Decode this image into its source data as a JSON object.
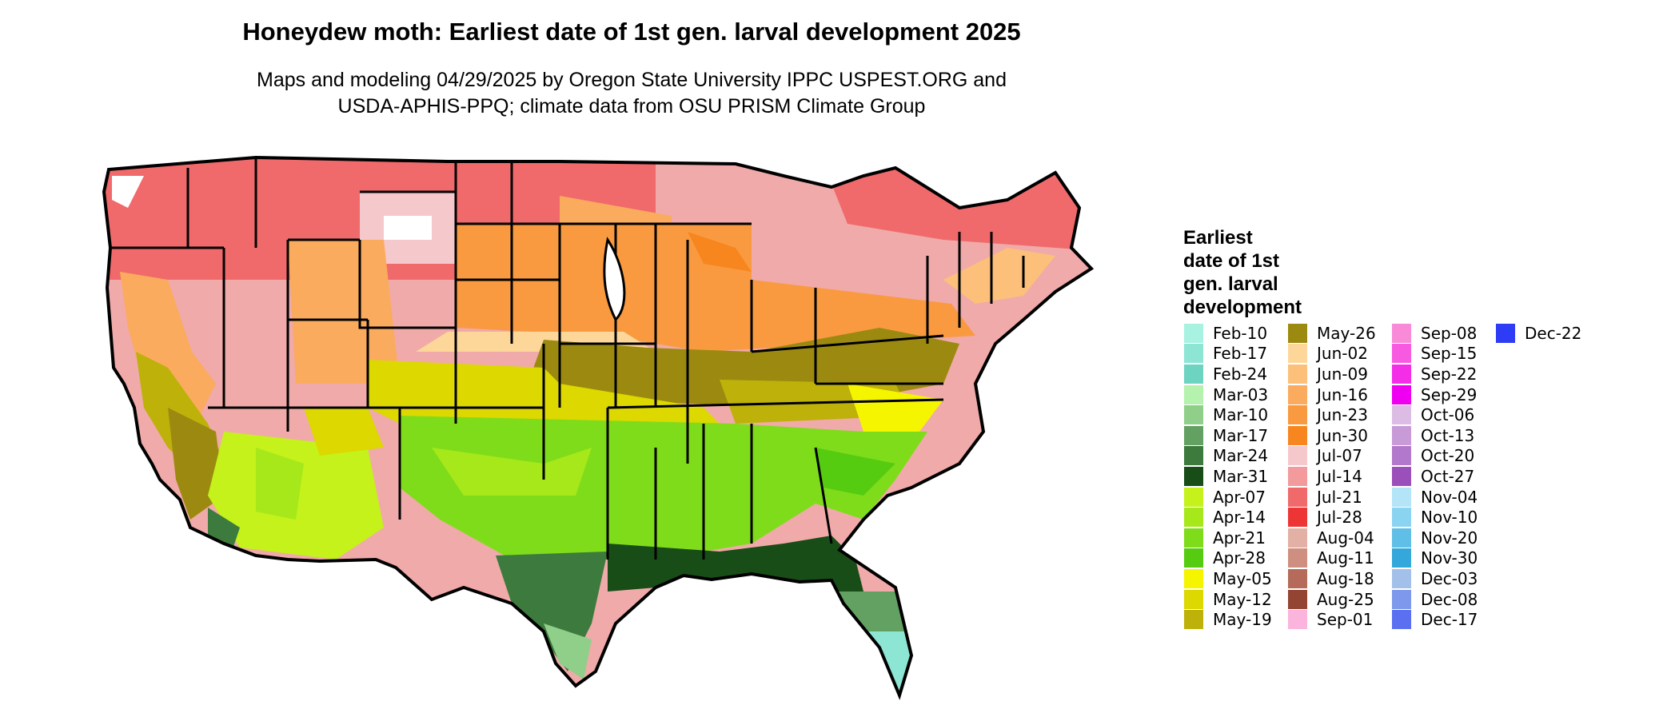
{
  "header": {
    "title": "Honeydew moth: Earliest date of 1st gen. larval development 2025",
    "subtitle_line1": "Maps and modeling 04/29/2025 by Oregon State University IPPC USPEST.ORG and",
    "subtitle_line2": "USDA-APHIS-PPQ; climate data from OSU PRISM Climate Group"
  },
  "legend": {
    "title_lines": [
      "Earliest",
      "date of 1st",
      "gen. larval",
      "development"
    ],
    "columns": [
      [
        {
          "label": "Feb-10",
          "color": "#a8f2e2"
        },
        {
          "label": "Feb-17",
          "color": "#8de5d3"
        },
        {
          "label": "Feb-24",
          "color": "#6dd4c2"
        },
        {
          "label": "Mar-03",
          "color": "#b5f2ad"
        },
        {
          "label": "Mar-10",
          "color": "#8fcf8a"
        },
        {
          "label": "Mar-17",
          "color": "#63a162"
        },
        {
          "label": "Mar-24",
          "color": "#3d7a3d"
        },
        {
          "label": "Mar-31",
          "color": "#184d18"
        },
        {
          "label": "Apr-07",
          "color": "#c4f21a"
        },
        {
          "label": "Apr-14",
          "color": "#a6e81a"
        },
        {
          "label": "Apr-21",
          "color": "#7fdc1a"
        },
        {
          "label": "Apr-28",
          "color": "#55cc10"
        },
        {
          "label": "May-05",
          "color": "#f5f500"
        },
        {
          "label": "May-12",
          "color": "#dcd800"
        },
        {
          "label": "May-19",
          "color": "#bdb10a"
        }
      ],
      [
        {
          "label": "May-26",
          "color": "#9c8a10"
        },
        {
          "label": "Jun-02",
          "color": "#fdd79a"
        },
        {
          "label": "Jun-09",
          "color": "#fcc07a"
        },
        {
          "label": "Jun-16",
          "color": "#fbab5e"
        },
        {
          "label": "Jun-23",
          "color": "#fa9a40"
        },
        {
          "label": "Jun-30",
          "color": "#f7861e"
        },
        {
          "label": "Jul-07",
          "color": "#f5c8cc"
        },
        {
          "label": "Jul-14",
          "color": "#f29a9c"
        },
        {
          "label": "Jul-21",
          "color": "#f06a6c"
        },
        {
          "label": "Jul-28",
          "color": "#ed3535"
        },
        {
          "label": "Aug-04",
          "color": "#e2b0a4"
        },
        {
          "label": "Aug-11",
          "color": "#cf8f80"
        },
        {
          "label": "Aug-18",
          "color": "#b56a5a"
        },
        {
          "label": "Aug-25",
          "color": "#944433"
        },
        {
          "label": "Sep-01",
          "color": "#fbb4dc"
        }
      ],
      [
        {
          "label": "Sep-08",
          "color": "#f98ad8"
        },
        {
          "label": "Sep-15",
          "color": "#f75ae0"
        },
        {
          "label": "Sep-22",
          "color": "#f42ee8"
        },
        {
          "label": "Sep-29",
          "color": "#f000f0"
        },
        {
          "label": "Oct-06",
          "color": "#dcbce4"
        },
        {
          "label": "Oct-13",
          "color": "#c89ad8"
        },
        {
          "label": "Oct-20",
          "color": "#b278cc"
        },
        {
          "label": "Oct-27",
          "color": "#9b4fbb"
        },
        {
          "label": "Nov-04",
          "color": "#b4e4f8"
        },
        {
          "label": "Nov-10",
          "color": "#8ad4f2"
        },
        {
          "label": "Nov-20",
          "color": "#5fbfe6"
        },
        {
          "label": "Nov-30",
          "color": "#34a8da"
        },
        {
          "label": "Dec-03",
          "color": "#a2c0ea"
        },
        {
          "label": "Dec-08",
          "color": "#7e98ec"
        },
        {
          "label": "Dec-17",
          "color": "#5a70f0"
        }
      ],
      [
        {
          "label": "Dec-22",
          "color": "#2e3cf5"
        }
      ]
    ]
  }
}
